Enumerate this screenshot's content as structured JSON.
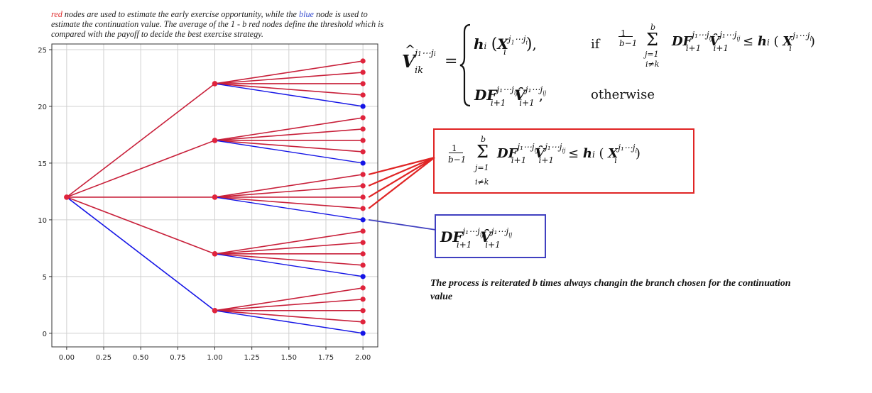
{
  "caption": {
    "red_word": "red",
    "part1": " nodes are used to estimate the early exercise opportunity, while the ",
    "blue_word": "blue",
    "part2": " node is used to estimate the continuation value. The average of the 1 - b red nodes define the threshold which is compared with the payoff to decide the best exercise strategy."
  },
  "note": "The process is reiterated b times always changin the branch chosen for the continuation value",
  "formula": {
    "lhs": "V̂",
    "lhs_sup": "j₁…jᵢ",
    "lhs_sub": "ik",
    "case1_value": "hᵢ(Xᵢ^{j₁…jᵢ}),",
    "case1_condition_word": "if",
    "case1_condition": "1/(b−1) Σ_{j=1, i≠k}^{b} DF_{i+1}^{j₁…j_{ij}} V̂_{i+1}^{j₁…j_{ij}} ≤ hᵢ(Xᵢ^{j₁…jᵢ})",
    "case2_value": "DF_{i+1}^{j₁…j_{ij}} V̂_{i+1}^{j₁…j_{ij}},",
    "case2_condition_word": "otherwise"
  },
  "red_box_formula": "1/(b−1) Σ_{j=1, i≠k}^{b} DF_{i+1}^{j₁…j_{ij}} V̂_{i+1}^{j₁…j_{ij}} ≤ hᵢ(Xᵢ^{j₁…jᵢ})",
  "blue_box_formula": "DF_{i+1}^{j₁…j_{ij}} V̂_{i+1}^{j₁…j_{ij}}",
  "colors": {
    "red": "#e03030",
    "crimson": "#c8203a",
    "blue": "#1515e6",
    "node_red": "#e0243c",
    "box_red": "#e02525",
    "box_blue": "#4040c0"
  },
  "chart_data": {
    "type": "tree",
    "x_ticks": [
      "0.00",
      "0.25",
      "0.50",
      "0.75",
      "1.00",
      "1.25",
      "1.50",
      "1.75",
      "2.00"
    ],
    "y_ticks": [
      "0",
      "5",
      "10",
      "15",
      "20",
      "25"
    ],
    "xlim": [
      -0.1,
      2.1
    ],
    "ylim": [
      -1.2,
      25.5
    ],
    "grid": true,
    "root": {
      "x": 0,
      "y": 12
    },
    "level1": [
      {
        "y": 22,
        "color": "red"
      },
      {
        "y": 17,
        "color": "red"
      },
      {
        "y": 12,
        "color": "red"
      },
      {
        "y": 7,
        "color": "red"
      },
      {
        "y": 2,
        "color": "blue"
      }
    ],
    "level2": [
      {
        "parent": 22,
        "children": [
          24,
          23,
          22,
          21
        ],
        "blue_child": 20
      },
      {
        "parent": 17,
        "children": [
          19,
          18,
          17,
          16
        ],
        "blue_child": 15
      },
      {
        "parent": 12,
        "children": [
          14,
          13,
          12,
          11
        ],
        "blue_child": 10
      },
      {
        "parent": 7,
        "children": [
          9,
          8,
          7,
          6
        ],
        "blue_child": 5
      },
      {
        "parent": 2,
        "children": [
          4,
          3,
          2,
          1
        ],
        "blue_child": 0
      }
    ]
  }
}
